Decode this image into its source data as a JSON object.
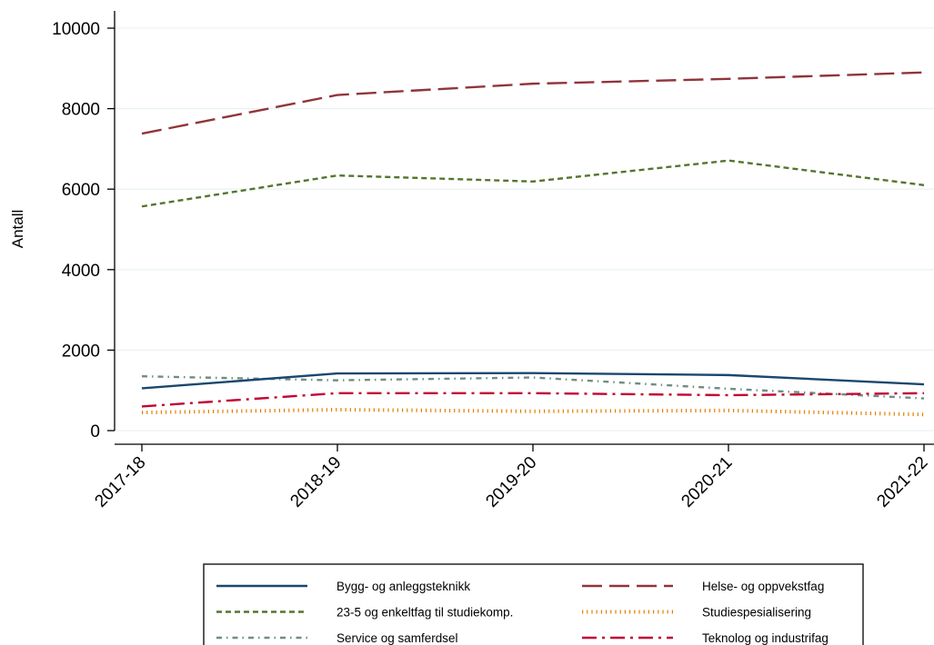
{
  "chart_data": {
    "type": "line",
    "ylabel": "Antall",
    "xlabel": "",
    "categories": [
      "2017-18",
      "2018-19",
      "2019-20",
      "2020-21",
      "2021-22"
    ],
    "ylim": [
      0,
      10000
    ],
    "yticks": [
      0,
      2000,
      4000,
      6000,
      8000,
      10000
    ],
    "ytick_labels": [
      "0",
      "2000",
      "4000",
      "6000",
      "8000",
      "10000"
    ],
    "grid": "horizontal",
    "legend_position": "bottom",
    "series": [
      {
        "name": "Bygg- og anleggsteknikk",
        "values": [
          1050,
          1420,
          1430,
          1380,
          1150
        ],
        "color": "#1a476f",
        "style": "solid"
      },
      {
        "name": "Helse- og oppvekstfag",
        "values": [
          7380,
          8340,
          8620,
          8740,
          8900
        ],
        "color": "#90353b",
        "style": "longdash"
      },
      {
        "name": "23-5 og enkeltfag til studiekomp.",
        "values": [
          5570,
          6340,
          6190,
          6710,
          6100
        ],
        "color": "#55752f",
        "style": "shortdash"
      },
      {
        "name": "Studiespesialisering",
        "values": [
          450,
          520,
          480,
          500,
          400
        ],
        "color": "#e37e00",
        "style": "dotted"
      },
      {
        "name": "Service og samferdsel",
        "values": [
          1350,
          1250,
          1320,
          1040,
          800
        ],
        "color": "#6e8e84",
        "style": "dashdot"
      },
      {
        "name": "Teknolog og industrifag",
        "values": [
          600,
          930,
          930,
          880,
          930
        ],
        "color": "#c10534",
        "style": "longdashdot"
      }
    ]
  }
}
